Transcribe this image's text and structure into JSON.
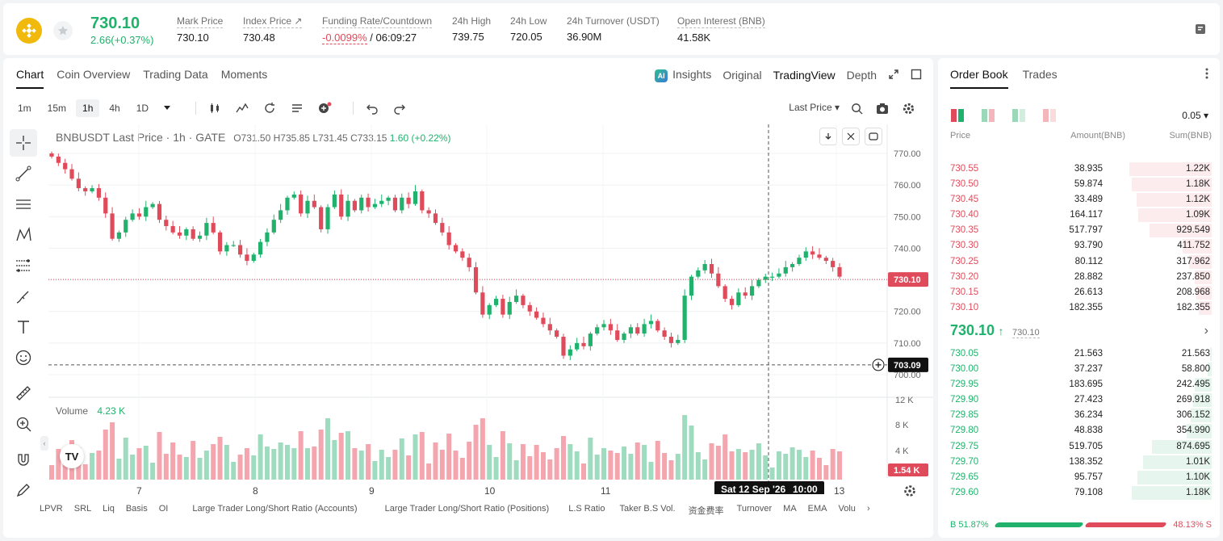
{
  "header": {
    "last_price": "730.10",
    "change": "2.66(+0.37%)",
    "stats": [
      {
        "label": "Mark Price",
        "value": "730.10"
      },
      {
        "label": "Index Price ↗",
        "value": "730.48"
      },
      {
        "label": "Funding Rate/Countdown",
        "value": "-0.0099%",
        "value2": " / 06:09:27"
      },
      {
        "label": "24h High",
        "value": "739.75"
      },
      {
        "label": "24h Low",
        "value": "720.05"
      },
      {
        "label": "24h Turnover (USDT)",
        "value": "36.90M"
      },
      {
        "label": "Open Interest (BNB)",
        "value": "41.58K"
      }
    ]
  },
  "chart_tabs": [
    "Chart",
    "Coin Overview",
    "Trading Data",
    "Moments"
  ],
  "view_tabs": {
    "insights": "Insights",
    "original": "Original",
    "tradingview": "TradingView",
    "depth": "Depth"
  },
  "timeframes": [
    "1m",
    "15m",
    "1h",
    "4h",
    "1D"
  ],
  "price_type": "Last Price",
  "plot": {
    "symbol": "BNBUSDT Last Price · 1h · GATE",
    "o": "O731.50",
    "h": "H735.85",
    "l": "L731.45",
    "c": "C733.15",
    "chg": "1.60 (+0.22%)",
    "volume_label": "Volume",
    "volume_value": "4.23 K",
    "current_price_tag": "730.10",
    "crosshair_price_tag": "703.09",
    "volume_tag": "1.54 K",
    "crosshair_time": "Sat 12 Sep '26",
    "crosshair_hour": "10:00"
  },
  "indicators": [
    "LPVR",
    "SRL",
    "Liq",
    "Basis",
    "OI",
    "Large Trader Long/Short Ratio (Accounts)",
    "Large Trader Long/Short Ratio (Positions)",
    "L.S Ratio",
    "Taker B.S Vol.",
    "资金费率",
    "Turnover",
    "MA",
    "EMA",
    "Volu"
  ],
  "chart_data": {
    "type": "candlestick",
    "price_axis": {
      "min": 700,
      "max": 770,
      "ticks": [
        "770.00",
        "760.00",
        "750.00",
        "740.00",
        "730.00",
        "720.00",
        "710.00",
        "700.00"
      ]
    },
    "volume_axis": {
      "ticks": [
        "12 K",
        "8 K",
        "4 K"
      ]
    },
    "x_ticks": [
      "7",
      "8",
      "9",
      "10",
      "11",
      "13"
    ],
    "last_price": 730.1,
    "crosshair_price": 703.09,
    "up_color": "#20b26c",
    "down_color": "#e04b5b",
    "close_path": [
      769,
      767,
      765,
      762,
      759,
      758,
      759,
      756,
      751,
      743,
      745,
      749,
      751,
      750,
      753,
      754,
      749,
      747,
      745,
      744,
      746,
      743,
      744,
      748,
      745,
      739,
      741,
      741,
      738,
      736,
      738,
      742,
      745,
      749,
      752,
      756,
      757,
      751,
      755,
      753,
      746,
      753,
      757,
      750,
      755,
      752,
      756,
      753,
      754,
      755,
      756,
      752,
      756,
      754,
      758,
      752,
      751,
      748,
      745,
      741,
      739,
      737,
      734,
      726,
      719,
      722,
      724,
      719,
      723,
      725,
      722,
      720,
      718,
      716,
      714,
      712,
      706,
      708,
      710,
      709,
      713,
      715,
      716,
      714,
      711,
      713,
      715,
      713,
      716,
      717,
      714,
      712,
      710,
      711,
      725,
      731,
      733,
      735,
      732,
      728,
      724,
      722,
      726,
      725,
      728,
      730,
      731,
      731,
      732,
      734,
      735,
      737,
      739,
      738,
      737,
      736,
      734,
      731
    ]
  },
  "order_book": {
    "tabs": [
      "Order Book",
      "Trades"
    ],
    "tick_size": "0.05",
    "headers": {
      "price": "Price",
      "amount": "Amount(BNB)",
      "sum": "Sum(BNB)"
    },
    "asks": [
      {
        "price": "730.55",
        "amount": "38.935",
        "sum": "1.22K",
        "depth": 0.96
      },
      {
        "price": "730.50",
        "amount": "59.874",
        "sum": "1.18K",
        "depth": 0.93
      },
      {
        "price": "730.45",
        "amount": "33.489",
        "sum": "1.12K",
        "depth": 0.88
      },
      {
        "price": "730.40",
        "amount": "164.117",
        "sum": "1.09K",
        "depth": 0.86
      },
      {
        "price": "730.35",
        "amount": "517.797",
        "sum": "929.549",
        "depth": 0.73
      },
      {
        "price": "730.30",
        "amount": "93.790",
        "sum": "411.752",
        "depth": 0.34
      },
      {
        "price": "730.25",
        "amount": "80.112",
        "sum": "317.962",
        "depth": 0.26
      },
      {
        "price": "730.20",
        "amount": "28.882",
        "sum": "237.850",
        "depth": 0.2
      },
      {
        "price": "730.15",
        "amount": "26.613",
        "sum": "208.968",
        "depth": 0.18
      },
      {
        "price": "730.10",
        "amount": "182.355",
        "sum": "182.355",
        "depth": 0.15
      }
    ],
    "mid_price": "730.10",
    "mid_arrow": "↑",
    "mid_mark": "730.10",
    "bids": [
      {
        "price": "730.05",
        "amount": "21.563",
        "sum": "21.563",
        "depth": 0.02
      },
      {
        "price": "730.00",
        "amount": "37.237",
        "sum": "58.800",
        "depth": 0.05
      },
      {
        "price": "729.95",
        "amount": "183.695",
        "sum": "242.495",
        "depth": 0.2
      },
      {
        "price": "729.90",
        "amount": "27.423",
        "sum": "269.918",
        "depth": 0.22
      },
      {
        "price": "729.85",
        "amount": "36.234",
        "sum": "306.152",
        "depth": 0.25
      },
      {
        "price": "729.80",
        "amount": "48.838",
        "sum": "354.990",
        "depth": 0.29
      },
      {
        "price": "729.75",
        "amount": "519.705",
        "sum": "874.695",
        "depth": 0.7
      },
      {
        "price": "729.70",
        "amount": "138.352",
        "sum": "1.01K",
        "depth": 0.8
      },
      {
        "price": "729.65",
        "amount": "95.757",
        "sum": "1.10K",
        "depth": 0.87
      },
      {
        "price": "729.60",
        "amount": "79.108",
        "sum": "1.18K",
        "depth": 0.93
      }
    ],
    "buy_ratio": "B 51.87%",
    "sell_ratio": "48.13% S"
  }
}
